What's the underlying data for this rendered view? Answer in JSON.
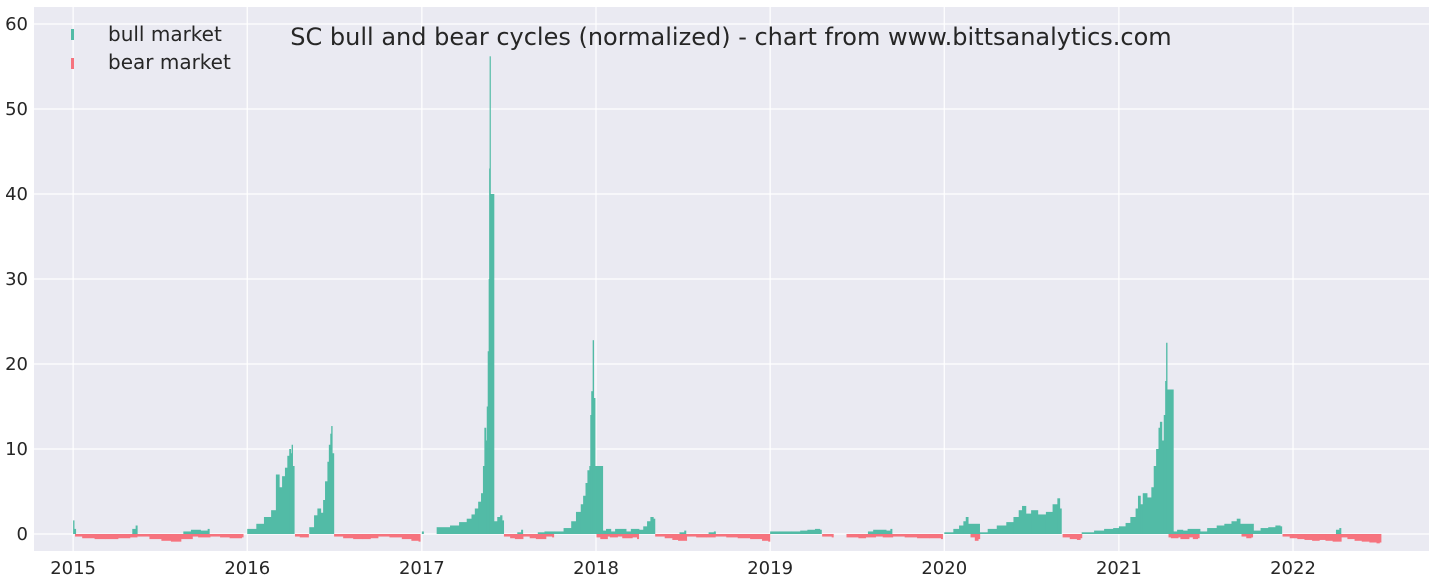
{
  "chart_data": {
    "type": "bar",
    "title": "SC bull and bear cycles (normalized)  - chart from www.bittsanalytics.com",
    "xlabel": "",
    "ylabel": "",
    "xlim": [
      "2014-10-11",
      "2022-10-13"
    ],
    "ylim": [
      -2,
      62
    ],
    "x_ticks": [
      "2015",
      "2016",
      "2017",
      "2018",
      "2019",
      "2020",
      "2021",
      "2022"
    ],
    "y_ticks": [
      0,
      10,
      20,
      30,
      40,
      50,
      60
    ],
    "grid": true,
    "legend_position": "top-left",
    "colors": {
      "bull": "#52bba6",
      "bear": "#f6737e",
      "plot_bg": "#eaeaf2",
      "grid": "#ffffff",
      "text": "#262626"
    },
    "series": [
      {
        "name": "bull market",
        "color": "#52bba6",
        "points": [
          [
            "2015-01-01",
            1.6
          ],
          [
            "2015-01-03",
            0.6
          ],
          [
            "2015-05-05",
            0.6
          ],
          [
            "2015-05-12",
            1.0
          ],
          [
            "2015-08-20",
            0.3
          ],
          [
            "2015-09-05",
            0.5
          ],
          [
            "2015-09-25",
            0.4
          ],
          [
            "2015-10-10",
            0.6
          ],
          [
            "2016-01-01",
            0.6
          ],
          [
            "2016-01-20",
            1.2
          ],
          [
            "2016-02-05",
            2.0
          ],
          [
            "2016-02-20",
            2.8
          ],
          [
            "2016-03-01",
            7.0
          ],
          [
            "2016-03-08",
            5.5
          ],
          [
            "2016-03-14",
            6.8
          ],
          [
            "2016-03-20",
            7.8
          ],
          [
            "2016-03-25",
            9.2
          ],
          [
            "2016-03-29",
            10.0
          ],
          [
            "2016-04-01",
            9.5
          ],
          [
            "2016-04-03",
            10.5
          ],
          [
            "2016-04-05",
            8.0
          ],
          [
            "2016-05-10",
            0.8
          ],
          [
            "2016-05-20",
            2.2
          ],
          [
            "2016-05-27",
            3.0
          ],
          [
            "2016-06-03",
            2.5
          ],
          [
            "2016-06-08",
            4.0
          ],
          [
            "2016-06-12",
            6.2
          ],
          [
            "2016-06-17",
            8.5
          ],
          [
            "2016-06-20",
            10.5
          ],
          [
            "2016-06-23",
            11.8
          ],
          [
            "2016-06-25",
            12.7
          ],
          [
            "2016-06-27",
            9.5
          ],
          [
            "2017-01-01",
            0.3
          ],
          [
            "2017-02-01",
            0.8
          ],
          [
            "2017-03-01",
            1.0
          ],
          [
            "2017-03-20",
            1.4
          ],
          [
            "2017-04-05",
            1.8
          ],
          [
            "2017-04-15",
            2.3
          ],
          [
            "2017-04-22",
            3.0
          ],
          [
            "2017-04-29",
            3.8
          ],
          [
            "2017-05-05",
            4.8
          ],
          [
            "2017-05-09",
            8.0
          ],
          [
            "2017-05-12",
            12.5
          ],
          [
            "2017-05-15",
            11.0
          ],
          [
            "2017-05-17",
            15.0
          ],
          [
            "2017-05-19",
            21.5
          ],
          [
            "2017-05-21",
            30.0
          ],
          [
            "2017-05-22",
            43.0
          ],
          [
            "2017-05-23",
            56.2
          ],
          [
            "2017-05-24",
            40.0
          ],
          [
            "2017-06-01",
            1.5
          ],
          [
            "2017-06-08",
            2.0
          ],
          [
            "2017-06-14",
            2.2
          ],
          [
            "2017-06-18",
            1.6
          ],
          [
            "2017-07-20",
            0.2
          ],
          [
            "2017-07-28",
            0.5
          ],
          [
            "2017-09-01",
            0.2
          ],
          [
            "2017-09-15",
            0.3
          ],
          [
            "2017-10-05",
            0.3
          ],
          [
            "2017-10-25",
            0.7
          ],
          [
            "2017-11-10",
            1.5
          ],
          [
            "2017-11-20",
            2.6
          ],
          [
            "2017-11-30",
            3.5
          ],
          [
            "2017-12-05",
            4.5
          ],
          [
            "2017-12-10",
            6.0
          ],
          [
            "2017-12-14",
            7.5
          ],
          [
            "2017-12-18",
            8.0
          ],
          [
            "2017-12-20",
            14.0
          ],
          [
            "2017-12-22",
            16.8
          ],
          [
            "2017-12-25",
            22.8
          ],
          [
            "2017-12-27",
            16.0
          ],
          [
            "2017-12-30",
            8.0
          ],
          [
            "2018-01-15",
            0.4
          ],
          [
            "2018-01-22",
            0.6
          ],
          [
            "2018-02-01",
            0.3
          ],
          [
            "2018-02-10",
            0.6
          ],
          [
            "2018-03-05",
            0.3
          ],
          [
            "2018-03-15",
            0.6
          ],
          [
            "2018-04-01",
            0.5
          ],
          [
            "2018-04-10",
            0.9
          ],
          [
            "2018-04-18",
            1.5
          ],
          [
            "2018-04-25",
            2.0
          ],
          [
            "2018-05-01",
            1.8
          ],
          [
            "2018-06-25",
            0.2
          ],
          [
            "2018-07-05",
            0.4
          ],
          [
            "2018-08-25",
            0.2
          ],
          [
            "2018-09-05",
            0.3
          ],
          [
            "2019-01-01",
            0.3
          ],
          [
            "2019-01-20",
            0.3
          ],
          [
            "2019-02-15",
            0.3
          ],
          [
            "2019-03-05",
            0.4
          ],
          [
            "2019-03-20",
            0.5
          ],
          [
            "2019-04-05",
            0.6
          ],
          [
            "2019-04-15",
            0.5
          ],
          [
            "2019-07-25",
            0.3
          ],
          [
            "2019-08-05",
            0.5
          ],
          [
            "2019-09-01",
            0.4
          ],
          [
            "2019-09-10",
            0.6
          ],
          [
            "2020-01-01",
            0.2
          ],
          [
            "2020-01-20",
            0.6
          ],
          [
            "2020-02-01",
            1.0
          ],
          [
            "2020-02-10",
            1.5
          ],
          [
            "2020-02-15",
            2.0
          ],
          [
            "2020-02-20",
            1.2
          ],
          [
            "2020-03-15",
            0.2
          ],
          [
            "2020-04-01",
            0.6
          ],
          [
            "2020-04-20",
            1.0
          ],
          [
            "2020-05-10",
            1.4
          ],
          [
            "2020-05-25",
            2.0
          ],
          [
            "2020-06-05",
            2.8
          ],
          [
            "2020-06-12",
            3.3
          ],
          [
            "2020-06-20",
            2.4
          ],
          [
            "2020-07-01",
            2.8
          ],
          [
            "2020-07-15",
            2.3
          ],
          [
            "2020-08-01",
            2.6
          ],
          [
            "2020-08-15",
            3.5
          ],
          [
            "2020-08-25",
            4.2
          ],
          [
            "2020-08-30",
            3.0
          ],
          [
            "2020-10-15",
            0.2
          ],
          [
            "2020-11-10",
            0.4
          ],
          [
            "2020-12-01",
            0.6
          ],
          [
            "2020-12-20",
            0.7
          ],
          [
            "2021-01-01",
            0.9
          ],
          [
            "2021-01-15",
            1.3
          ],
          [
            "2021-01-25",
            2.0
          ],
          [
            "2021-02-05",
            3.0
          ],
          [
            "2021-02-10",
            4.5
          ],
          [
            "2021-02-15",
            3.5
          ],
          [
            "2021-02-20",
            4.8
          ],
          [
            "2021-03-01",
            4.3
          ],
          [
            "2021-03-10",
            5.5
          ],
          [
            "2021-03-15",
            8.0
          ],
          [
            "2021-03-20",
            10.0
          ],
          [
            "2021-03-25",
            12.5
          ],
          [
            "2021-03-28",
            13.2
          ],
          [
            "2021-04-01",
            11.0
          ],
          [
            "2021-04-05",
            14.0
          ],
          [
            "2021-04-08",
            18.0
          ],
          [
            "2021-04-10",
            22.5
          ],
          [
            "2021-04-12",
            17.0
          ],
          [
            "2021-04-25",
            0.3
          ],
          [
            "2021-05-03",
            0.5
          ],
          [
            "2021-05-15",
            0.4
          ],
          [
            "2021-05-25",
            0.6
          ],
          [
            "2021-06-20",
            0.3
          ],
          [
            "2021-07-05",
            0.7
          ],
          [
            "2021-07-25",
            1.0
          ],
          [
            "2021-08-10",
            1.2
          ],
          [
            "2021-08-25",
            1.5
          ],
          [
            "2021-09-05",
            1.8
          ],
          [
            "2021-09-12",
            1.2
          ],
          [
            "2021-10-10",
            0.4
          ],
          [
            "2021-10-25",
            0.7
          ],
          [
            "2021-11-10",
            0.8
          ],
          [
            "2021-11-25",
            1.0
          ],
          [
            "2021-12-05",
            0.9
          ],
          [
            "2022-04-01",
            0.5
          ],
          [
            "2022-04-08",
            0.7
          ]
        ]
      },
      {
        "name": "bear market",
        "color": "#f6737e",
        "points": [
          [
            "2015-01-05",
            -0.3
          ],
          [
            "2015-01-20",
            -0.5
          ],
          [
            "2015-02-15",
            -0.6
          ],
          [
            "2015-03-10",
            -0.6
          ],
          [
            "2015-04-05",
            -0.5
          ],
          [
            "2015-04-30",
            -0.4
          ],
          [
            "2015-05-15",
            -0.3
          ],
          [
            "2015-06-10",
            -0.6
          ],
          [
            "2015-07-05",
            -0.8
          ],
          [
            "2015-07-25",
            -0.9
          ],
          [
            "2015-08-15",
            -0.6
          ],
          [
            "2015-09-08",
            -0.3
          ],
          [
            "2015-09-20",
            -0.4
          ],
          [
            "2015-10-15",
            -0.3
          ],
          [
            "2015-11-05",
            -0.4
          ],
          [
            "2015-11-25",
            -0.5
          ],
          [
            "2015-12-20",
            -0.4
          ],
          [
            "2016-04-10",
            -0.3
          ],
          [
            "2016-04-20",
            -0.4
          ],
          [
            "2016-05-05",
            -0.4
          ],
          [
            "2016-07-01",
            -0.3
          ],
          [
            "2016-07-20",
            -0.5
          ],
          [
            "2016-08-10",
            -0.6
          ],
          [
            "2016-08-30",
            -0.6
          ],
          [
            "2016-09-15",
            -0.5
          ],
          [
            "2016-10-01",
            -0.3
          ],
          [
            "2016-10-25",
            -0.4
          ],
          [
            "2016-11-20",
            -0.6
          ],
          [
            "2016-12-10",
            -0.8
          ],
          [
            "2016-12-25",
            -0.9
          ],
          [
            "2017-06-22",
            -0.3
          ],
          [
            "2017-07-05",
            -0.5
          ],
          [
            "2017-07-15",
            -0.6
          ],
          [
            "2017-08-01",
            -0.3
          ],
          [
            "2017-08-15",
            -0.5
          ],
          [
            "2017-08-28",
            -0.6
          ],
          [
            "2017-09-18",
            -0.3
          ],
          [
            "2017-10-01",
            -0.4
          ],
          [
            "2018-01-02",
            -0.4
          ],
          [
            "2018-01-10",
            -0.6
          ],
          [
            "2018-01-25",
            -0.3
          ],
          [
            "2018-01-30",
            -0.4
          ],
          [
            "2018-02-15",
            -0.3
          ],
          [
            "2018-02-25",
            -0.5
          ],
          [
            "2018-03-18",
            -0.4
          ],
          [
            "2018-03-28",
            -0.6
          ],
          [
            "2018-05-05",
            -0.3
          ],
          [
            "2018-05-25",
            -0.5
          ],
          [
            "2018-06-10",
            -0.7
          ],
          [
            "2018-06-22",
            -0.8
          ],
          [
            "2018-07-10",
            -0.3
          ],
          [
            "2018-07-30",
            -0.4
          ],
          [
            "2018-08-20",
            -0.4
          ],
          [
            "2018-09-08",
            -0.3
          ],
          [
            "2018-10-01",
            -0.4
          ],
          [
            "2018-10-25",
            -0.5
          ],
          [
            "2018-11-20",
            -0.6
          ],
          [
            "2018-12-15",
            -0.8
          ],
          [
            "2018-12-28",
            -0.9
          ],
          [
            "2019-04-20",
            -0.3
          ],
          [
            "2019-05-10",
            -0.4
          ],
          [
            "2019-06-10",
            -0.4
          ],
          [
            "2019-07-05",
            -0.5
          ],
          [
            "2019-07-20",
            -0.4
          ],
          [
            "2019-08-10",
            -0.3
          ],
          [
            "2019-08-25",
            -0.4
          ],
          [
            "2019-09-15",
            -0.3
          ],
          [
            "2019-10-10",
            -0.4
          ],
          [
            "2019-11-05",
            -0.5
          ],
          [
            "2019-12-01",
            -0.5
          ],
          [
            "2019-12-25",
            -0.6
          ],
          [
            "2020-02-25",
            -0.4
          ],
          [
            "2020-03-05",
            -0.8
          ],
          [
            "2020-03-12",
            -0.6
          ],
          [
            "2020-09-05",
            -0.4
          ],
          [
            "2020-09-20",
            -0.6
          ],
          [
            "2020-10-05",
            -0.7
          ],
          [
            "2020-10-12",
            -0.5
          ],
          [
            "2021-04-15",
            -0.4
          ],
          [
            "2021-04-20",
            -0.5
          ],
          [
            "2021-05-05",
            -0.4
          ],
          [
            "2021-05-10",
            -0.6
          ],
          [
            "2021-05-28",
            -0.4
          ],
          [
            "2021-06-05",
            -0.6
          ],
          [
            "2021-06-15",
            -0.5
          ],
          [
            "2021-09-15",
            -0.3
          ],
          [
            "2021-09-25",
            -0.5
          ],
          [
            "2021-10-05",
            -0.4
          ],
          [
            "2021-12-10",
            -0.3
          ],
          [
            "2021-12-25",
            -0.5
          ],
          [
            "2022-01-10",
            -0.6
          ],
          [
            "2022-01-25",
            -0.7
          ],
          [
            "2022-02-10",
            -0.8
          ],
          [
            "2022-02-25",
            -0.7
          ],
          [
            "2022-03-10",
            -0.8
          ],
          [
            "2022-03-25",
            -0.9
          ],
          [
            "2022-04-12",
            -0.4
          ],
          [
            "2022-04-25",
            -0.6
          ],
          [
            "2022-05-10",
            -0.8
          ],
          [
            "2022-05-25",
            -0.9
          ],
          [
            "2022-06-10",
            -1.0
          ],
          [
            "2022-06-25",
            -1.1
          ],
          [
            "2022-07-01",
            -1.0
          ]
        ]
      }
    ]
  }
}
